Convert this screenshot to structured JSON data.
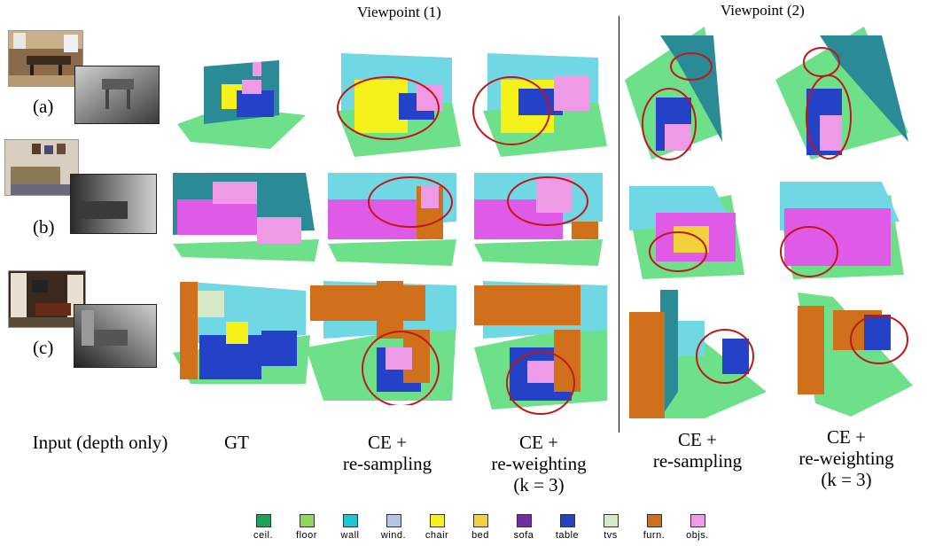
{
  "headers": {
    "viewpoint1": "Viewpoint (1)",
    "viewpoint2": "Viewpoint (2)"
  },
  "rows": [
    {
      "label": "(a)"
    },
    {
      "label": "(b)"
    },
    {
      "label": "(c)"
    }
  ],
  "columns": {
    "input": "Input (depth only)",
    "gt": "GT",
    "ce_resampling_1": [
      "CE +",
      "re-sampling"
    ],
    "ce_reweighting_1": [
      "CE +",
      "re-weighting",
      "(k = 3)"
    ],
    "ce_resampling_2": [
      "CE +",
      "re-sampling"
    ],
    "ce_reweighting_2": [
      "CE +",
      "re-weighting",
      "(k = 3)"
    ]
  },
  "legend": [
    {
      "label": "ceil.",
      "color": "#1aa35a"
    },
    {
      "label": "floor",
      "color": "#8fd85a"
    },
    {
      "label": "wall",
      "color": "#1fc6d6"
    },
    {
      "label": "wind.",
      "color": "#b3c6e6"
    },
    {
      "label": "chair",
      "color": "#f4f21a"
    },
    {
      "label": "bed",
      "color": "#f2d23a"
    },
    {
      "label": "sofa",
      "color": "#6e2fa5"
    },
    {
      "label": "table",
      "color": "#2442c8"
    },
    {
      "label": "tvs",
      "color": "#d6e8c6"
    },
    {
      "label": "furn.",
      "color": "#d0701a"
    },
    {
      "label": "objs.",
      "color": "#ee9ae6"
    }
  ],
  "colors": {
    "highlight_circle": "#c01818",
    "wall_dark": "#2a8a96",
    "wall_light": "#6fd8e4",
    "floor": "#6fe08a",
    "sofa_magenta": "#e05ae8"
  }
}
